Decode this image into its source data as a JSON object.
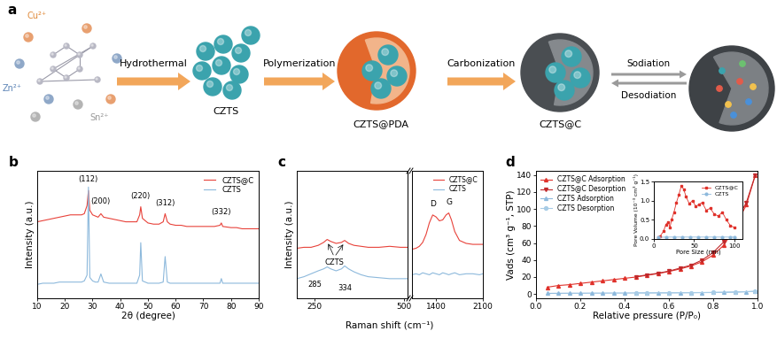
{
  "diagram": {
    "label": "a",
    "ions": [
      "Cu²⁺",
      "Zn²⁺",
      "Sn²⁺"
    ],
    "steps": [
      "Hydrothermal",
      "Polymerization",
      "Carbonization"
    ],
    "products": [
      "CZTS",
      "CZTS@PDA",
      "CZTS@C"
    ],
    "cycle": [
      "Sodiation",
      "Desodiation"
    ]
  },
  "chart_data": [
    {
      "type": "line",
      "title": "b",
      "x_label": "2θ (degree)",
      "y_label": "Intensity (a.u.)",
      "xlim": [
        10,
        90
      ],
      "xticks": [
        10,
        20,
        30,
        40,
        50,
        60,
        70,
        80,
        90
      ],
      "ylim": [
        0,
        11
      ],
      "tick_labels": "x",
      "legend": "upper right",
      "series": [
        {
          "name": "CZTS@C",
          "color": "#e8423a",
          "x": [
            10,
            12,
            14,
            16,
            18,
            20,
            22,
            24,
            26,
            27,
            28,
            28.5,
            29,
            30,
            31,
            32,
            33,
            34,
            36,
            38,
            40,
            42,
            44,
            46,
            47,
            47.4,
            48,
            50,
            52,
            54,
            55.5,
            56.2,
            57,
            58,
            60,
            62,
            64,
            66,
            68,
            70,
            72,
            74,
            76,
            76.5,
            77,
            80,
            82,
            84,
            86,
            88,
            90
          ],
          "values": [
            6.6,
            6.7,
            6.8,
            6.9,
            7.0,
            7.1,
            7.2,
            7.2,
            7.2,
            7.3,
            8.0,
            9.3,
            7.6,
            7.2,
            7.1,
            7.0,
            7.3,
            7.0,
            6.9,
            6.8,
            6.7,
            6.6,
            6.6,
            6.6,
            7.2,
            7.9,
            6.9,
            6.5,
            6.4,
            6.4,
            6.6,
            7.3,
            6.6,
            6.4,
            6.3,
            6.3,
            6.2,
            6.2,
            6.2,
            6.2,
            6.2,
            6.2,
            6.3,
            6.5,
            6.2,
            6.1,
            6.1,
            6.0,
            6.0,
            6.0,
            6.0
          ]
        },
        {
          "name": "CZTS",
          "color": "#8db9dc",
          "x": [
            10,
            12,
            14,
            16,
            18,
            20,
            22,
            24,
            26,
            27,
            28,
            28.5,
            29,
            30,
            31,
            32,
            33,
            34,
            36,
            38,
            40,
            42,
            44,
            46,
            47,
            47.4,
            48,
            50,
            52,
            54,
            55.5,
            56.2,
            57,
            58,
            60,
            62,
            64,
            66,
            68,
            70,
            72,
            74,
            76,
            76.5,
            77,
            80,
            82,
            84,
            86,
            88,
            90
          ],
          "values": [
            1.2,
            1.3,
            1.3,
            1.3,
            1.4,
            1.4,
            1.4,
            1.4,
            1.4,
            1.5,
            2.0,
            9.6,
            1.8,
            1.5,
            1.4,
            1.4,
            2.1,
            1.4,
            1.3,
            1.3,
            1.3,
            1.3,
            1.3,
            1.3,
            2.0,
            4.8,
            1.5,
            1.3,
            1.3,
            1.3,
            1.4,
            3.6,
            1.4,
            1.3,
            1.3,
            1.3,
            1.3,
            1.3,
            1.3,
            1.3,
            1.3,
            1.3,
            1.3,
            1.7,
            1.3,
            1.3,
            1.3,
            1.3,
            1.3,
            1.3,
            1.3
          ]
        }
      ],
      "annotations": [
        {
          "text": "(112)",
          "x": 28.5,
          "y": 9.9
        },
        {
          "text": "(200)",
          "x": 33,
          "y": 8.0
        },
        {
          "text": "(220)",
          "x": 47.4,
          "y": 8.5
        },
        {
          "text": "(312)",
          "x": 56.2,
          "y": 7.9
        },
        {
          "text": "(332)",
          "x": 76.5,
          "y": 7.1
        }
      ]
    },
    {
      "type": "line",
      "title": "c",
      "x_label": "Raman shift (cm⁻¹)",
      "y_label": "Intensity (a.u.)",
      "xlim": [
        200,
        510
      ],
      "xticks": [
        250,
        500
      ],
      "ylim": [
        0,
        13
      ],
      "tick_labels": "x",
      "series": [
        {
          "name": "CZTS@C",
          "color": "#e8423a",
          "x": [
            200,
            220,
            240,
            260,
            275,
            285,
            295,
            310,
            325,
            334,
            345,
            360,
            380,
            400,
            430,
            460,
            490,
            510
          ],
          "values": [
            5.1,
            5.2,
            5.2,
            5.4,
            5.7,
            6.0,
            5.8,
            5.6,
            5.7,
            5.9,
            5.6,
            5.4,
            5.3,
            5.2,
            5.2,
            5.3,
            5.2,
            5.2
          ]
        },
        {
          "name": "CZTS",
          "color": "#8db9dc",
          "x": [
            200,
            220,
            240,
            260,
            275,
            285,
            295,
            310,
            325,
            334,
            345,
            360,
            380,
            400,
            430,
            460,
            490,
            510
          ],
          "values": [
            2.0,
            2.2,
            2.5,
            2.8,
            3.0,
            3.2,
            3.0,
            2.8,
            3.0,
            3.3,
            3.0,
            2.7,
            2.4,
            2.2,
            2.1,
            2.0,
            2.0,
            2.0
          ]
        }
      ],
      "annotations": [
        {
          "text": "CZTS",
          "x": 305,
          "y": 4.1
        },
        {
          "text": "285",
          "x": 250,
          "y": 1.0
        },
        {
          "text": "334",
          "x": 334,
          "y": 0.6
        }
      ]
    },
    {
      "type": "line",
      "xlim": [
        1040,
        2100
      ],
      "xticks": [
        1400,
        2100
      ],
      "ylim": [
        0,
        13
      ],
      "tick_labels": "x",
      "legend": "upper right",
      "series": [
        {
          "name": "CZTS@C",
          "color": "#e8423a",
          "x": [
            1040,
            1100,
            1150,
            1200,
            1250,
            1300,
            1350,
            1400,
            1450,
            1500,
            1550,
            1590,
            1630,
            1680,
            1750,
            1850,
            1950,
            2050,
            2100
          ],
          "values": [
            5.0,
            5.1,
            5.3,
            5.7,
            6.5,
            7.7,
            8.5,
            8.3,
            7.9,
            8.0,
            8.5,
            8.7,
            8.0,
            6.8,
            5.9,
            5.6,
            5.5,
            5.5,
            5.5
          ]
        },
        {
          "name": "CZTS",
          "color": "#8db9dc",
          "x": [
            1040,
            1100,
            1150,
            1200,
            1250,
            1300,
            1350,
            1400,
            1450,
            1500,
            1550,
            1590,
            1630,
            1680,
            1750,
            1850,
            1950,
            2050,
            2100
          ],
          "values": [
            2.4,
            2.5,
            2.4,
            2.6,
            2.5,
            2.4,
            2.6,
            2.5,
            2.4,
            2.6,
            2.5,
            2.4,
            2.5,
            2.6,
            2.4,
            2.5,
            2.5,
            2.4,
            2.5
          ]
        }
      ],
      "annotations": [
        {
          "text": "D",
          "x": 1350,
          "y": 9.2
        },
        {
          "text": "G",
          "x": 1590,
          "y": 9.4
        }
      ]
    },
    {
      "type": "line",
      "title": "d",
      "x_label": "Relative pressure (P/P₀)",
      "y_label": "Vads (cm³ g⁻¹, STP)",
      "xlim": [
        0.0,
        1.0
      ],
      "xticks": [
        0.0,
        0.2,
        0.4,
        0.6,
        0.8,
        1.0
      ],
      "ylim": [
        -5,
        145
      ],
      "yticks": [
        0,
        20,
        40,
        60,
        80,
        100,
        120,
        140
      ],
      "legend": "upper left",
      "series": [
        {
          "name": "CZTS@C Adsorption",
          "color": "#e0322b",
          "marker": "triangle_up",
          "x": [
            0.05,
            0.1,
            0.15,
            0.2,
            0.25,
            0.3,
            0.35,
            0.4,
            0.45,
            0.5,
            0.55,
            0.6,
            0.65,
            0.7,
            0.75,
            0.8,
            0.85,
            0.9,
            0.95,
            0.99
          ],
          "values": [
            8,
            10,
            11,
            12.5,
            14,
            15.5,
            17,
            18.5,
            20,
            22,
            24,
            26.5,
            29.5,
            33,
            38,
            46,
            58,
            80,
            105,
            140
          ]
        },
        {
          "name": "CZTS@C Desorption",
          "color": "#c0282a",
          "marker": "triangle_down",
          "x": [
            0.99,
            0.95,
            0.9,
            0.85,
            0.8,
            0.75,
            0.7,
            0.65,
            0.6,
            0.55,
            0.5,
            0.45
          ],
          "values": [
            140,
            108,
            84,
            62,
            49,
            40,
            34,
            30.5,
            27,
            24.5,
            22.5,
            20.5
          ]
        },
        {
          "name": "CZTS Adsorption",
          "color": "#8db9dc",
          "marker": "triangle_up",
          "x": [
            0.05,
            0.1,
            0.15,
            0.2,
            0.25,
            0.3,
            0.35,
            0.4,
            0.45,
            0.5,
            0.55,
            0.6,
            0.65,
            0.7,
            0.75,
            0.8,
            0.85,
            0.9,
            0.95,
            0.99
          ],
          "values": [
            0.8,
            0.9,
            1.0,
            1.0,
            1.1,
            1.1,
            1.2,
            1.2,
            1.3,
            1.3,
            1.4,
            1.4,
            1.5,
            1.6,
            1.7,
            1.8,
            2.0,
            2.3,
            2.7,
            3.2
          ]
        },
        {
          "name": "CZTS Desorption",
          "color": "#a8cce6",
          "marker": "circle",
          "x": [
            0.99,
            0.9,
            0.8,
            0.7,
            0.6,
            0.5,
            0.45
          ],
          "values": [
            3.2,
            2.4,
            1.9,
            1.7,
            1.5,
            1.4,
            1.3
          ]
        }
      ]
    },
    {
      "type": "line",
      "x_label": "Pore Size (nm)",
      "y_label": "Pore Volume (10⁻³ cm³ g⁻¹)",
      "xlim": [
        0,
        110
      ],
      "xticks": [
        0,
        50,
        100
      ],
      "ylim": [
        0.0,
        1.5
      ],
      "yticks": [
        0.0,
        0.5,
        1.0,
        1.5
      ],
      "legend": "upper right",
      "series": [
        {
          "name": "CZTS@C",
          "color": "#e0322b",
          "marker": "square",
          "x": [
            5,
            8,
            12,
            15,
            18,
            20,
            22,
            25,
            28,
            31,
            34,
            37,
            40,
            44,
            48,
            52,
            56,
            60,
            65,
            70,
            75,
            80,
            85,
            90,
            95,
            100
          ],
          "values": [
            0.05,
            0.08,
            0.2,
            0.38,
            0.45,
            0.3,
            0.5,
            0.7,
            0.95,
            1.15,
            1.38,
            1.3,
            1.1,
            0.92,
            1.0,
            0.85,
            0.9,
            0.95,
            0.75,
            0.8,
            0.65,
            0.6,
            0.7,
            0.5,
            0.35,
            0.3
          ]
        },
        {
          "name": "CZTS",
          "color": "#8db9dc",
          "marker": "circle",
          "x": [
            5,
            15,
            25,
            35,
            45,
            55,
            65,
            75,
            85,
            95,
            100
          ],
          "values": [
            0.04,
            0.05,
            0.05,
            0.05,
            0.05,
            0.05,
            0.05,
            0.05,
            0.05,
            0.05,
            0.05
          ]
        }
      ]
    }
  ]
}
